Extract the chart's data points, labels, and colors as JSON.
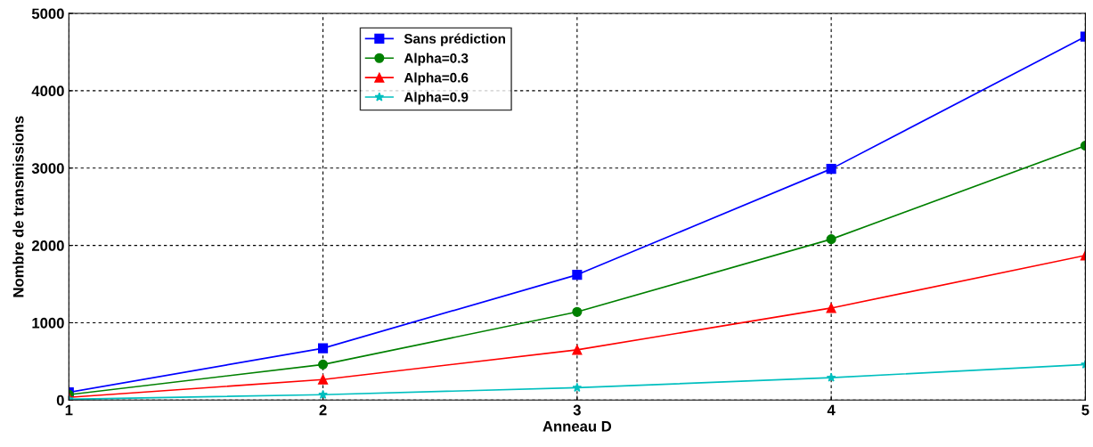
{
  "chart_data": {
    "type": "line",
    "xlabel": "Anneau D",
    "ylabel": "Nombre de transmissions",
    "x": [
      1,
      2,
      3,
      4,
      5
    ],
    "series": [
      {
        "name": "Sans prédiction",
        "color": "#0000ff",
        "marker": "square",
        "values": [
          100,
          670,
          1620,
          2990,
          4700
        ]
      },
      {
        "name": "Alpha=0.3",
        "color": "#008000",
        "marker": "circle",
        "values": [
          70,
          460,
          1140,
          2080,
          3290
        ]
      },
      {
        "name": "Alpha=0.6",
        "color": "#ff0000",
        "marker": "triangle",
        "values": [
          35,
          265,
          650,
          1190,
          1870
        ]
      },
      {
        "name": "Alpha=0.9",
        "color": "#00bfbf",
        "marker": "star",
        "values": [
          10,
          70,
          160,
          290,
          460
        ]
      }
    ],
    "xlim": [
      1,
      5
    ],
    "xticks": [
      1,
      2,
      3,
      4,
      5
    ],
    "ylim": [
      0,
      5000
    ],
    "yticks": [
      0,
      1000,
      2000,
      3000,
      4000,
      5000
    ],
    "grid": true,
    "legend": "top",
    "line_style": "solid"
  }
}
